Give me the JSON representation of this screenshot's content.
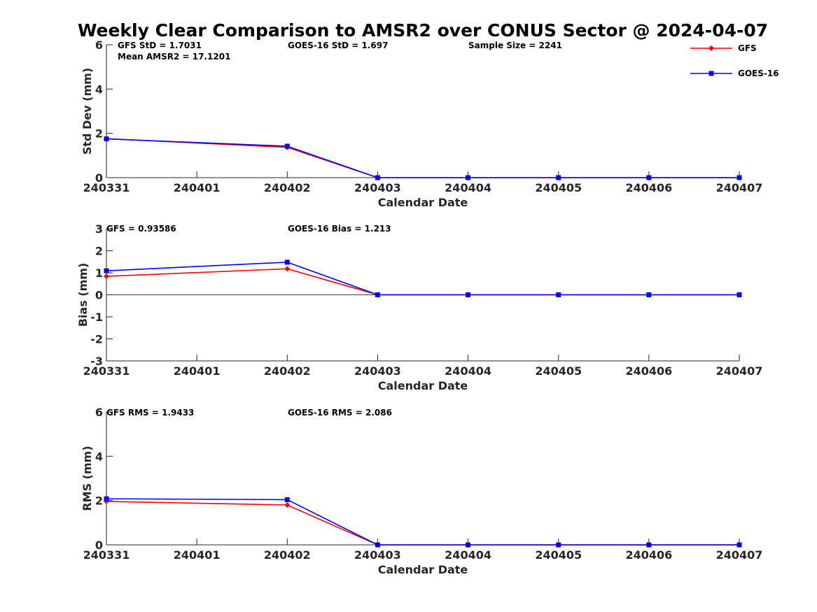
{
  "title": "Weekly Clear Comparison to AMSR2 over CONUS Sector @ 2024-04-07",
  "legend": {
    "placement": "top-right",
    "entries": [
      {
        "name": "GFS",
        "color": "#ff0000",
        "marker": "diamond"
      },
      {
        "name": "GOES-16",
        "color": "#0000ff",
        "marker": "square"
      }
    ]
  },
  "chart_data": [
    {
      "type": "line",
      "x": [
        "240331",
        "240401",
        "240402",
        "240403",
        "240404",
        "240405",
        "240406",
        "240407"
      ],
      "xlabel": "Calendar Date",
      "ylabel": "Std Dev (mm)",
      "ylim": [
        0,
        6
      ],
      "yticks": [
        "0",
        "2",
        "4",
        "6"
      ],
      "zero_line": false,
      "annotations": [
        "GFS StD = 1.7031",
        "GOES-16 StD = 1.697",
        "Sample Size = 2241",
        "Mean AMSR2 = 17.1201"
      ],
      "series": [
        {
          "name": "GFS",
          "color": "#ff0000",
          "marker": "diamond",
          "x": [
            "240331",
            "240402",
            "240403",
            "240404",
            "240405",
            "240406",
            "240407"
          ],
          "values": [
            1.76,
            1.37,
            0,
            0,
            0,
            0,
            0
          ]
        },
        {
          "name": "GOES-16",
          "color": "#0000ff",
          "marker": "square",
          "x": [
            "240331",
            "240402",
            "240403",
            "240404",
            "240405",
            "240406",
            "240407"
          ],
          "values": [
            1.75,
            1.42,
            0,
            0,
            0,
            0,
            0
          ]
        }
      ]
    },
    {
      "type": "line",
      "x": [
        "240331",
        "240401",
        "240402",
        "240403",
        "240404",
        "240405",
        "240406",
        "240407"
      ],
      "xlabel": "Calendar Date",
      "ylabel": "Bias (mm)",
      "ylim": [
        -3,
        3
      ],
      "yticks": [
        "-3",
        "-2",
        "-1",
        "0",
        "1",
        "2",
        "3"
      ],
      "zero_line": true,
      "annotations": [
        "GFS = 0.93586",
        "GOES-16 Bias  = 1.213"
      ],
      "series": [
        {
          "name": "GFS",
          "color": "#ff0000",
          "marker": "diamond",
          "x": [
            "240331",
            "240402",
            "240403",
            "240404",
            "240405",
            "240406",
            "240407"
          ],
          "values": [
            0.84,
            1.18,
            0,
            0,
            0,
            0,
            0
          ]
        },
        {
          "name": "GOES-16",
          "color": "#0000ff",
          "marker": "square",
          "x": [
            "240331",
            "240402",
            "240403",
            "240404",
            "240405",
            "240406",
            "240407"
          ],
          "values": [
            1.09,
            1.48,
            0,
            0,
            0,
            0,
            0
          ]
        }
      ]
    },
    {
      "type": "line",
      "x": [
        "240331",
        "240401",
        "240402",
        "240403",
        "240404",
        "240405",
        "240406",
        "240407"
      ],
      "xlabel": "Calendar Date",
      "ylabel": "RMS (mm)",
      "ylim": [
        0,
        6
      ],
      "yticks": [
        "0",
        "2",
        "4",
        "6"
      ],
      "zero_line": false,
      "annotations": [
        "GFS RMS = 1.9433",
        "GOES-16 RMS = 2.086"
      ],
      "series": [
        {
          "name": "GFS",
          "color": "#ff0000",
          "marker": "diamond",
          "x": [
            "240331",
            "240402",
            "240403",
            "240404",
            "240405",
            "240406",
            "240407"
          ],
          "values": [
            1.96,
            1.8,
            0,
            0,
            0,
            0,
            0
          ]
        },
        {
          "name": "GOES-16",
          "color": "#0000ff",
          "marker": "square",
          "x": [
            "240331",
            "240402",
            "240403",
            "240404",
            "240405",
            "240406",
            "240407"
          ],
          "values": [
            2.08,
            2.04,
            0,
            0,
            0,
            0,
            0
          ]
        }
      ]
    }
  ]
}
